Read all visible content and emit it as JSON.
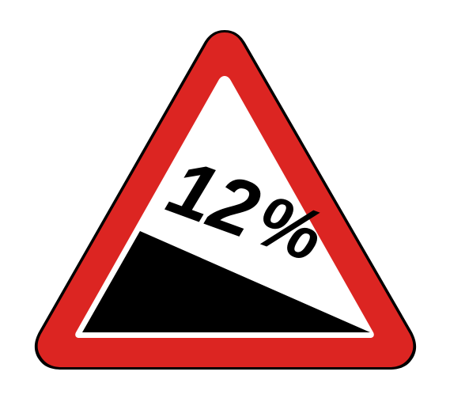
{
  "sign": {
    "type": "steep-descent-warning",
    "grade_value": "12",
    "grade_unit": "%",
    "colors": {
      "background": "#ffffff",
      "border": "#dc2522",
      "outline": "#000000",
      "slope": "#000000",
      "text": "#000000"
    }
  }
}
